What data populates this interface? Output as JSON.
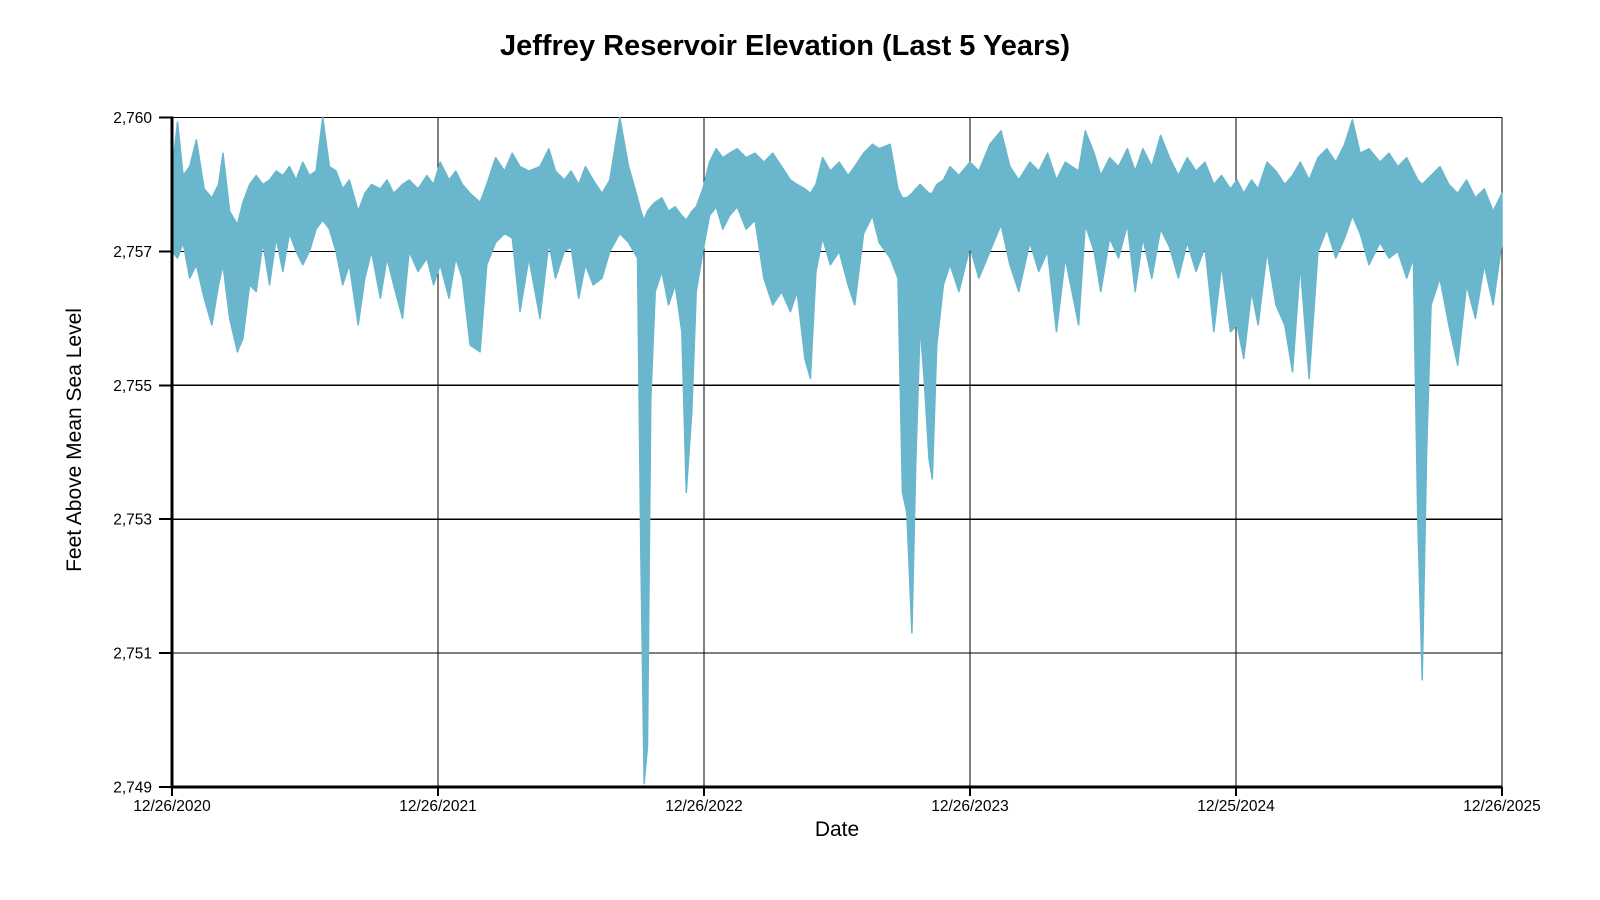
{
  "page": {
    "background": "#ffffff"
  },
  "chart_data": {
    "type": "area",
    "title": "Jeffrey Reservoir Elevation (Last 5 Years)",
    "xlabel": "Date",
    "ylabel": "Feet Above Mean Sea Level",
    "x_axis": {
      "tick_labels": [
        "12/26/2020",
        "12/26/2021",
        "12/26/2022",
        "12/26/2023",
        "12/25/2024",
        "12/26/2025"
      ],
      "tick_positions_months": [
        0,
        12,
        24,
        36,
        48,
        60
      ],
      "range_months": [
        0,
        60
      ]
    },
    "y_axis": {
      "tick_values": [
        2760,
        2757,
        2755,
        2753,
        2751,
        2749
      ],
      "tick_labels": [
        "2,760",
        "2,757",
        "2,755",
        "2,753",
        "2,751",
        "2,749"
      ],
      "note": "gridlines evenly spaced as rendered; top interval spans 3 ft, others 2 ft"
    },
    "grid": true,
    "legend": "none",
    "series": [
      {
        "name": "reservoir-elevation-envelope",
        "color": "#69b6cd",
        "x_unit": "months since 12/26/2020",
        "points_format": [
          "month",
          "high_ft",
          "low_ft"
        ],
        "envelope": [
          [
            0.0,
            2758.8,
            2757.0
          ],
          [
            0.25,
            2759.9,
            2756.9
          ],
          [
            0.5,
            2758.7,
            2757.2
          ],
          [
            0.8,
            2758.9,
            2756.6
          ],
          [
            1.1,
            2759.5,
            2756.8
          ],
          [
            1.45,
            2758.4,
            2756.3
          ],
          [
            1.8,
            2758.2,
            2755.9
          ],
          [
            2.1,
            2758.5,
            2756.5
          ],
          [
            2.3,
            2759.2,
            2756.8
          ],
          [
            2.6,
            2757.9,
            2756.0
          ],
          [
            2.95,
            2757.6,
            2755.5
          ],
          [
            3.2,
            2758.1,
            2755.7
          ],
          [
            3.5,
            2758.5,
            2756.5
          ],
          [
            3.8,
            2758.7,
            2756.4
          ],
          [
            4.1,
            2758.5,
            2757.2
          ],
          [
            4.4,
            2758.6,
            2756.5
          ],
          [
            4.7,
            2758.8,
            2757.3
          ],
          [
            5.0,
            2758.7,
            2756.7
          ],
          [
            5.3,
            2758.9,
            2757.4
          ],
          [
            5.6,
            2758.6,
            2757.0
          ],
          [
            5.9,
            2759.0,
            2756.8
          ],
          [
            6.2,
            2758.7,
            2757.0
          ],
          [
            6.5,
            2758.8,
            2757.5
          ],
          [
            6.8,
            2760.0,
            2757.7
          ],
          [
            7.1,
            2758.9,
            2757.5
          ],
          [
            7.4,
            2758.8,
            2757.0
          ],
          [
            7.7,
            2758.4,
            2756.5
          ],
          [
            8.0,
            2758.6,
            2756.8
          ],
          [
            8.4,
            2757.9,
            2755.9
          ],
          [
            8.7,
            2758.3,
            2756.6
          ],
          [
            9.0,
            2758.5,
            2757.0
          ],
          [
            9.4,
            2758.4,
            2756.3
          ],
          [
            9.7,
            2758.6,
            2756.9
          ],
          [
            10.0,
            2758.3,
            2756.5
          ],
          [
            10.4,
            2758.5,
            2756.0
          ],
          [
            10.7,
            2758.6,
            2757.0
          ],
          [
            11.1,
            2758.4,
            2756.7
          ],
          [
            11.5,
            2758.7,
            2756.9
          ],
          [
            11.8,
            2758.5,
            2756.5
          ],
          [
            12.1,
            2759.0,
            2756.8
          ],
          [
            12.5,
            2758.6,
            2756.3
          ],
          [
            12.8,
            2758.8,
            2756.9
          ],
          [
            13.1,
            2758.5,
            2756.6
          ],
          [
            13.45,
            2758.3,
            2755.6
          ],
          [
            13.9,
            2758.1,
            2755.5
          ],
          [
            14.2,
            2758.5,
            2756.8
          ],
          [
            14.6,
            2759.1,
            2757.2
          ],
          [
            15.0,
            2758.8,
            2757.4
          ],
          [
            15.35,
            2759.2,
            2757.3
          ],
          [
            15.7,
            2758.9,
            2756.1
          ],
          [
            16.1,
            2758.8,
            2756.9
          ],
          [
            16.6,
            2758.9,
            2756.0
          ],
          [
            17.0,
            2759.3,
            2757.2
          ],
          [
            17.3,
            2758.8,
            2756.6
          ],
          [
            17.7,
            2758.6,
            2757.0
          ],
          [
            18.0,
            2758.8,
            2757.1
          ],
          [
            18.35,
            2758.5,
            2756.3
          ],
          [
            18.65,
            2758.9,
            2756.8
          ],
          [
            19.0,
            2758.6,
            2756.5
          ],
          [
            19.4,
            2758.3,
            2756.6
          ],
          [
            19.75,
            2758.6,
            2757.0
          ],
          [
            20.2,
            2760.0,
            2757.4
          ],
          [
            20.6,
            2758.9,
            2757.2
          ],
          [
            21.0,
            2758.2,
            2756.9
          ],
          [
            21.15,
            2757.9,
            2752.5
          ],
          [
            21.3,
            2757.7,
            2749.05
          ],
          [
            21.45,
            2757.9,
            2749.6
          ],
          [
            21.6,
            2758.0,
            2754.8
          ],
          [
            21.8,
            2758.1,
            2756.4
          ],
          [
            22.1,
            2758.2,
            2756.7
          ],
          [
            22.4,
            2757.9,
            2756.2
          ],
          [
            22.7,
            2758.0,
            2756.5
          ],
          [
            23.0,
            2757.8,
            2755.8
          ],
          [
            23.2,
            2757.7,
            2753.4
          ],
          [
            23.45,
            2757.9,
            2754.6
          ],
          [
            23.65,
            2758.0,
            2756.4
          ],
          [
            23.95,
            2758.4,
            2757.0
          ],
          [
            24.25,
            2759.0,
            2757.8
          ],
          [
            24.55,
            2759.3,
            2758.0
          ],
          [
            24.85,
            2759.1,
            2757.5
          ],
          [
            25.15,
            2759.2,
            2757.8
          ],
          [
            25.5,
            2759.3,
            2758.0
          ],
          [
            25.9,
            2759.1,
            2757.5
          ],
          [
            26.3,
            2759.2,
            2757.7
          ],
          [
            26.7,
            2759.0,
            2756.6
          ],
          [
            27.1,
            2759.2,
            2756.2
          ],
          [
            27.5,
            2758.9,
            2756.4
          ],
          [
            27.9,
            2758.6,
            2756.1
          ],
          [
            28.2,
            2758.5,
            2756.4
          ],
          [
            28.55,
            2758.4,
            2755.4
          ],
          [
            28.8,
            2758.3,
            2755.1
          ],
          [
            29.05,
            2758.5,
            2756.7
          ],
          [
            29.35,
            2759.1,
            2757.3
          ],
          [
            29.7,
            2758.8,
            2756.8
          ],
          [
            30.1,
            2759.0,
            2757.0
          ],
          [
            30.5,
            2758.7,
            2756.5
          ],
          [
            30.8,
            2758.9,
            2756.2
          ],
          [
            31.2,
            2759.2,
            2757.4
          ],
          [
            31.6,
            2759.4,
            2757.8
          ],
          [
            31.9,
            2759.3,
            2757.2
          ],
          [
            32.4,
            2759.4,
            2756.9
          ],
          [
            32.75,
            2758.4,
            2756.6
          ],
          [
            32.95,
            2758.2,
            2753.4
          ],
          [
            33.15,
            2758.2,
            2753.1
          ],
          [
            33.38,
            2758.3,
            2751.3
          ],
          [
            33.55,
            2758.4,
            2753.8
          ],
          [
            33.75,
            2758.5,
            2755.9
          ],
          [
            33.95,
            2758.4,
            2755.0
          ],
          [
            34.15,
            2758.3,
            2753.9
          ],
          [
            34.3,
            2758.3,
            2753.6
          ],
          [
            34.5,
            2758.5,
            2755.6
          ],
          [
            34.8,
            2758.6,
            2756.5
          ],
          [
            35.1,
            2758.9,
            2756.8
          ],
          [
            35.5,
            2758.7,
            2756.4
          ],
          [
            36.0,
            2759.0,
            2757.1
          ],
          [
            36.4,
            2758.8,
            2756.6
          ],
          [
            36.9,
            2759.4,
            2757.0
          ],
          [
            37.4,
            2759.7,
            2757.6
          ],
          [
            37.8,
            2758.9,
            2756.8
          ],
          [
            38.2,
            2758.6,
            2756.4
          ],
          [
            38.7,
            2759.0,
            2757.2
          ],
          [
            39.1,
            2758.8,
            2756.7
          ],
          [
            39.5,
            2759.2,
            2757.0
          ],
          [
            39.9,
            2758.6,
            2755.8
          ],
          [
            40.3,
            2759.0,
            2756.9
          ],
          [
            40.9,
            2758.8,
            2755.9
          ],
          [
            41.2,
            2759.7,
            2757.6
          ],
          [
            41.6,
            2759.2,
            2757.0
          ],
          [
            41.9,
            2758.7,
            2756.4
          ],
          [
            42.3,
            2759.1,
            2757.3
          ],
          [
            42.7,
            2758.9,
            2756.9
          ],
          [
            43.1,
            2759.3,
            2757.6
          ],
          [
            43.45,
            2758.8,
            2756.4
          ],
          [
            43.8,
            2759.3,
            2757.3
          ],
          [
            44.2,
            2758.9,
            2756.6
          ],
          [
            44.6,
            2759.6,
            2757.5
          ],
          [
            45.0,
            2759.1,
            2757.1
          ],
          [
            45.4,
            2758.7,
            2756.6
          ],
          [
            45.8,
            2759.1,
            2757.2
          ],
          [
            46.2,
            2758.8,
            2756.7
          ],
          [
            46.6,
            2759.0,
            2757.1
          ],
          [
            47.0,
            2758.5,
            2755.8
          ],
          [
            47.35,
            2758.7,
            2756.8
          ],
          [
            47.75,
            2758.4,
            2755.8
          ],
          [
            48.05,
            2758.6,
            2755.9
          ],
          [
            48.35,
            2758.3,
            2755.4
          ],
          [
            48.7,
            2758.6,
            2756.4
          ],
          [
            49.0,
            2758.4,
            2755.9
          ],
          [
            49.4,
            2759.0,
            2757.0
          ],
          [
            49.8,
            2758.8,
            2756.2
          ],
          [
            50.2,
            2758.5,
            2755.9
          ],
          [
            50.55,
            2758.7,
            2755.2
          ],
          [
            50.9,
            2759.0,
            2756.8
          ],
          [
            51.3,
            2758.6,
            2755.1
          ],
          [
            51.7,
            2759.1,
            2757.0
          ],
          [
            52.1,
            2759.3,
            2757.5
          ],
          [
            52.5,
            2759.0,
            2756.9
          ],
          [
            52.9,
            2759.4,
            2757.3
          ],
          [
            53.25,
            2759.95,
            2757.8
          ],
          [
            53.6,
            2759.2,
            2757.4
          ],
          [
            54.0,
            2759.3,
            2756.8
          ],
          [
            54.5,
            2759.0,
            2757.2
          ],
          [
            54.9,
            2759.2,
            2756.9
          ],
          [
            55.3,
            2758.9,
            2757.0
          ],
          [
            55.7,
            2759.1,
            2756.6
          ],
          [
            56.0,
            2758.8,
            2756.9
          ],
          [
            56.2,
            2758.6,
            2753.0
          ],
          [
            56.4,
            2758.5,
            2750.6
          ],
          [
            56.6,
            2758.6,
            2754.0
          ],
          [
            56.8,
            2758.7,
            2756.2
          ],
          [
            57.2,
            2758.9,
            2756.6
          ],
          [
            57.6,
            2758.5,
            2755.9
          ],
          [
            58.0,
            2758.3,
            2755.3
          ],
          [
            58.4,
            2758.6,
            2756.5
          ],
          [
            58.8,
            2758.2,
            2756.0
          ],
          [
            59.2,
            2758.4,
            2756.8
          ],
          [
            59.6,
            2757.9,
            2756.2
          ],
          [
            60.0,
            2758.3,
            2757.2
          ]
        ]
      }
    ]
  }
}
